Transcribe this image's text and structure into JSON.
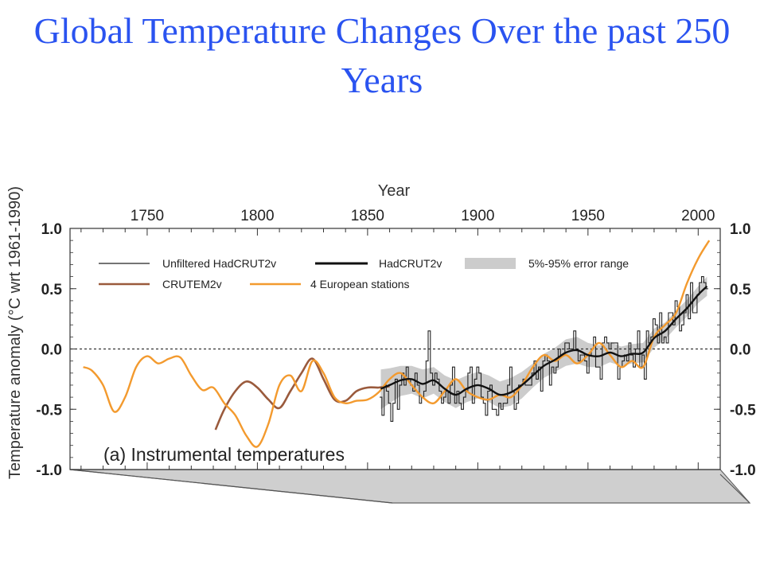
{
  "slide": {
    "title": "Global Temperature Changes Over the past 250 Years"
  },
  "chart_data": {
    "type": "line",
    "title": "",
    "xlabel": "Year",
    "ylabel": "Temperature anomaly  (°C wrt 1961-1990)",
    "panel_label": "(a) Instrumental temperatures",
    "xlim": [
      1715,
      2010
    ],
    "ylim": [
      -1.0,
      1.0
    ],
    "x_ticks": [
      1750,
      1800,
      1850,
      1900,
      1950,
      2000
    ],
    "y_ticks": [
      1.0,
      0.5,
      0.0,
      -0.5,
      -1.0
    ],
    "y_tick_labels": [
      "1.0",
      "0.5",
      "0.0",
      "-0.5",
      "-1.0"
    ],
    "zero_line": "dashed",
    "legend_placement": "top",
    "colors": {
      "unfiltered": "#222222",
      "hadcrut": "#111111",
      "error_band": "#cccccc",
      "crutem": "#9a5a3c",
      "european": "#f39a2e"
    },
    "series": [
      {
        "name": "Unfiltered HadCRUT2v",
        "style": "thin-step",
        "x": [
          1856,
          1857,
          1858,
          1859,
          1860,
          1861,
          1862,
          1863,
          1864,
          1865,
          1866,
          1867,
          1868,
          1869,
          1870,
          1871,
          1872,
          1873,
          1874,
          1875,
          1876,
          1877,
          1878,
          1879,
          1880,
          1881,
          1882,
          1883,
          1884,
          1885,
          1886,
          1887,
          1888,
          1889,
          1890,
          1891,
          1892,
          1893,
          1894,
          1895,
          1896,
          1897,
          1898,
          1899,
          1900,
          1901,
          1902,
          1903,
          1904,
          1905,
          1906,
          1907,
          1908,
          1909,
          1910,
          1911,
          1912,
          1913,
          1914,
          1915,
          1916,
          1917,
          1918,
          1919,
          1920,
          1921,
          1922,
          1923,
          1924,
          1925,
          1926,
          1927,
          1928,
          1929,
          1930,
          1931,
          1932,
          1933,
          1934,
          1935,
          1936,
          1937,
          1938,
          1939,
          1940,
          1941,
          1942,
          1943,
          1944,
          1945,
          1946,
          1947,
          1948,
          1949,
          1950,
          1951,
          1952,
          1953,
          1954,
          1955,
          1956,
          1957,
          1958,
          1959,
          1960,
          1961,
          1962,
          1963,
          1964,
          1965,
          1966,
          1967,
          1968,
          1969,
          1970,
          1971,
          1972,
          1973,
          1974,
          1975,
          1976,
          1977,
          1978,
          1979,
          1980,
          1981,
          1982,
          1983,
          1984,
          1985,
          1986,
          1987,
          1988,
          1989,
          1990,
          1991,
          1992,
          1993,
          1994,
          1995,
          1996,
          1997,
          1998,
          1999,
          2000,
          2001,
          2002,
          2003,
          2004
        ],
        "values": [
          -0.4,
          -0.55,
          -0.3,
          -0.35,
          -0.45,
          -0.6,
          -0.45,
          -0.25,
          -0.5,
          -0.3,
          -0.2,
          -0.3,
          -0.15,
          -0.25,
          -0.3,
          -0.35,
          -0.2,
          -0.3,
          -0.45,
          -0.4,
          -0.35,
          -0.1,
          0.15,
          -0.2,
          -0.3,
          -0.2,
          -0.25,
          -0.35,
          -0.45,
          -0.4,
          -0.35,
          -0.45,
          -0.3,
          -0.15,
          -0.45,
          -0.35,
          -0.45,
          -0.5,
          -0.4,
          -0.35,
          -0.2,
          -0.15,
          -0.45,
          -0.25,
          -0.15,
          -0.2,
          -0.4,
          -0.45,
          -0.55,
          -0.35,
          -0.3,
          -0.5,
          -0.5,
          -0.55,
          -0.45,
          -0.5,
          -0.45,
          -0.45,
          -0.3,
          -0.15,
          -0.35,
          -0.5,
          -0.45,
          -0.3,
          -0.3,
          -0.25,
          -0.3,
          -0.3,
          -0.3,
          -0.2,
          -0.1,
          -0.25,
          -0.15,
          -0.35,
          -0.1,
          -0.05,
          -0.1,
          -0.3,
          -0.15,
          -0.2,
          -0.15,
          0.0,
          -0.05,
          -0.05,
          0.05,
          0.05,
          0.0,
          0.0,
          0.15,
          0.0,
          -0.1,
          -0.05,
          -0.05,
          -0.1,
          -0.2,
          -0.05,
          0.0,
          0.1,
          -0.15,
          -0.15,
          -0.25,
          0.05,
          0.1,
          0.05,
          0.0,
          0.05,
          0.05,
          0.05,
          -0.25,
          -0.15,
          -0.1,
          -0.05,
          -0.1,
          0.05,
          -0.05,
          -0.15,
          0.0,
          0.15,
          -0.15,
          -0.05,
          -0.25,
          0.15,
          0.05,
          0.1,
          0.25,
          0.2,
          0.05,
          0.3,
          0.05,
          0.1,
          0.05,
          0.3,
          0.3,
          0.2,
          0.4,
          0.35,
          0.15,
          0.2,
          0.3,
          0.45,
          0.25,
          0.55,
          0.3,
          0.3,
          0.45,
          0.55,
          0.6,
          0.55,
          0.5
        ]
      },
      {
        "name": "HadCRUT2v",
        "style": "thick",
        "x": [
          1856,
          1860,
          1865,
          1870,
          1875,
          1880,
          1885,
          1890,
          1895,
          1900,
          1905,
          1910,
          1915,
          1920,
          1925,
          1930,
          1935,
          1940,
          1945,
          1950,
          1955,
          1960,
          1965,
          1970,
          1975,
          1980,
          1985,
          1990,
          1995,
          2000,
          2004
        ],
        "values": [
          -0.33,
          -0.3,
          -0.26,
          -0.25,
          -0.29,
          -0.26,
          -0.33,
          -0.38,
          -0.33,
          -0.3,
          -0.33,
          -0.38,
          -0.36,
          -0.3,
          -0.22,
          -0.14,
          -0.09,
          -0.03,
          -0.01,
          -0.05,
          -0.06,
          -0.03,
          -0.06,
          -0.04,
          -0.03,
          0.09,
          0.15,
          0.25,
          0.34,
          0.45,
          0.52
        ]
      },
      {
        "name": "5%-95% error range",
        "style": "band",
        "x": [
          1856,
          1860,
          1865,
          1870,
          1875,
          1880,
          1885,
          1890,
          1895,
          1900,
          1905,
          1910,
          1915,
          1920,
          1925,
          1930,
          1935,
          1940,
          1945,
          1950,
          1955,
          1960,
          1965,
          1970,
          1975,
          1980,
          1985,
          1990,
          1995,
          2000,
          2004
        ],
        "upper": [
          -0.17,
          -0.16,
          -0.14,
          -0.14,
          -0.17,
          -0.15,
          -0.22,
          -0.26,
          -0.22,
          -0.19,
          -0.22,
          -0.27,
          -0.24,
          -0.19,
          -0.12,
          -0.04,
          0.01,
          0.08,
          0.1,
          0.05,
          0.03,
          0.06,
          0.02,
          0.04,
          0.05,
          0.17,
          0.22,
          0.32,
          0.41,
          0.52,
          0.6
        ],
        "lower": [
          -0.5,
          -0.45,
          -0.39,
          -0.37,
          -0.41,
          -0.37,
          -0.44,
          -0.49,
          -0.44,
          -0.41,
          -0.44,
          -0.49,
          -0.47,
          -0.41,
          -0.32,
          -0.24,
          -0.19,
          -0.14,
          -0.12,
          -0.15,
          -0.15,
          -0.11,
          -0.14,
          -0.12,
          -0.11,
          0.01,
          0.08,
          0.18,
          0.27,
          0.38,
          0.44
        ]
      },
      {
        "name": "CRUTEM2v",
        "style": "line",
        "x": [
          1781,
          1785,
          1790,
          1795,
          1800,
          1805,
          1810,
          1815,
          1820,
          1825,
          1830,
          1835,
          1840,
          1845,
          1850,
          1855,
          1860
        ],
        "values": [
          -0.67,
          -0.5,
          -0.35,
          -0.27,
          -0.32,
          -0.42,
          -0.49,
          -0.35,
          -0.2,
          -0.08,
          -0.25,
          -0.42,
          -0.43,
          -0.35,
          -0.32,
          -0.32,
          -0.31
        ]
      },
      {
        "name": "4 European stations",
        "style": "line",
        "x": [
          1721,
          1725,
          1730,
          1735,
          1740,
          1745,
          1750,
          1755,
          1760,
          1765,
          1770,
          1775,
          1780,
          1785,
          1790,
          1795,
          1800,
          1805,
          1810,
          1815,
          1820,
          1825,
          1830,
          1835,
          1840,
          1845,
          1850,
          1855,
          1860,
          1865,
          1870,
          1875,
          1880,
          1885,
          1890,
          1895,
          1900,
          1905,
          1910,
          1915,
          1920,
          1925,
          1930,
          1935,
          1940,
          1945,
          1950,
          1955,
          1960,
          1965,
          1970,
          1975,
          1980,
          1985,
          1990,
          1995,
          2000,
          2005
        ],
        "values": [
          -0.15,
          -0.18,
          -0.3,
          -0.52,
          -0.4,
          -0.15,
          -0.06,
          -0.12,
          -0.08,
          -0.07,
          -0.22,
          -0.34,
          -0.32,
          -0.45,
          -0.55,
          -0.72,
          -0.81,
          -0.62,
          -0.3,
          -0.22,
          -0.35,
          -0.1,
          -0.2,
          -0.4,
          -0.45,
          -0.43,
          -0.42,
          -0.36,
          -0.25,
          -0.2,
          -0.3,
          -0.4,
          -0.45,
          -0.35,
          -0.25,
          -0.35,
          -0.4,
          -0.42,
          -0.38,
          -0.4,
          -0.3,
          -0.15,
          -0.05,
          -0.1,
          -0.05,
          -0.12,
          -0.05,
          0.05,
          -0.05,
          -0.15,
          -0.1,
          -0.15,
          0.1,
          0.2,
          0.3,
          0.55,
          0.75,
          0.9
        ]
      }
    ]
  }
}
